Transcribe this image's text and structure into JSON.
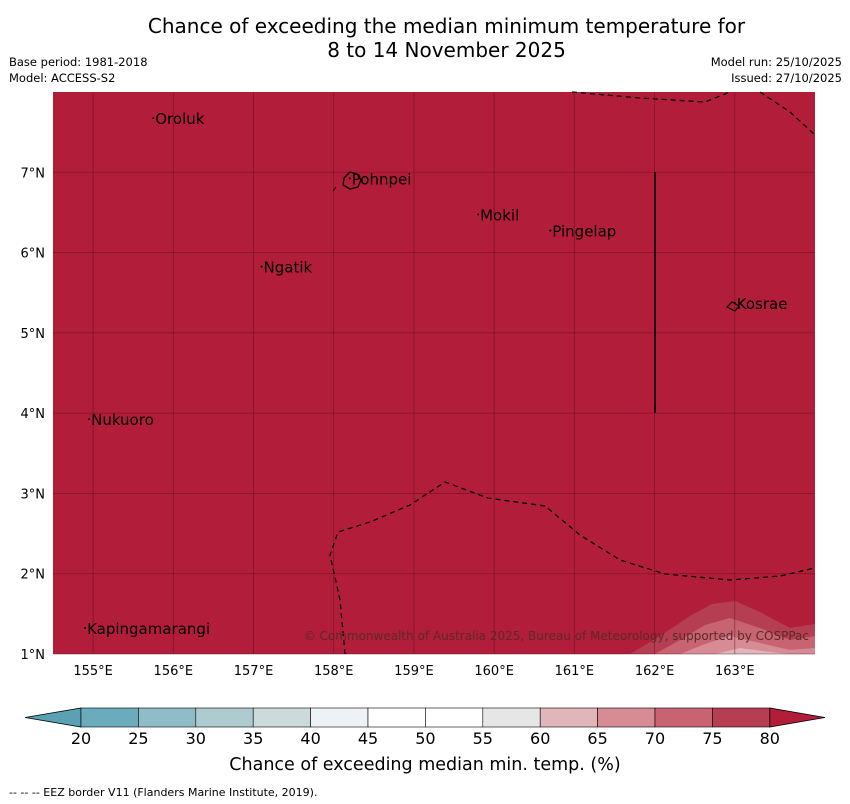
{
  "title": {
    "line1": "Chance of exceeding the median minimum temperature for",
    "line2": "8 to 14 November 2025"
  },
  "meta": {
    "base_period": "Base period: 1981-2018",
    "model": "Model: ACCESS-S2",
    "model_run": "Model run: 25/10/2025",
    "issued": "Issued: 27/10/2025"
  },
  "map": {
    "lon_range": [
      154.5,
      164
    ],
    "lat_range": [
      1,
      8
    ],
    "x_ticks": [
      "155°E",
      "156°E",
      "157°E",
      "158°E",
      "159°E",
      "160°E",
      "161°E",
      "162°E",
      "163°E"
    ],
    "y_ticks": [
      "7°N",
      "6°N",
      "5°N",
      "4°N",
      "3°N",
      "2°N",
      "1°N"
    ],
    "fill_color": "#b21d39",
    "places": [
      {
        "name": "Oroluk",
        "lon": 155.75,
        "lat": 7.6
      },
      {
        "name": "Pohnpei",
        "lon": 158.2,
        "lat": 6.85
      },
      {
        "name": "Mokil",
        "lon": 159.8,
        "lat": 6.4
      },
      {
        "name": "Pingelap",
        "lon": 160.7,
        "lat": 6.2
      },
      {
        "name": "Ngatik",
        "lon": 157.1,
        "lat": 5.75
      },
      {
        "name": "Kosrae",
        "lon": 163.0,
        "lat": 5.3
      },
      {
        "name": "Nukuoro",
        "lon": 154.95,
        "lat": 3.85
      },
      {
        "name": "Kapingamarangi",
        "lon": 154.9,
        "lat": 1.25
      }
    ],
    "copyright": "© Commonwealth of Australia 2025, Bureau of Meteorology, supported by COSPPac"
  },
  "colorbar": {
    "label": "Chance of exceeding median min. temp. (%)",
    "ticks": [
      "20",
      "25",
      "30",
      "35",
      "40",
      "45",
      "50",
      "55",
      "60",
      "65",
      "70",
      "75",
      "80"
    ],
    "colors": [
      "#6aacbc",
      "#8fbcc8",
      "#aecbcf",
      "#ccdadc",
      "#eef2f4",
      "#ffffff",
      "#ffffff",
      "#e6e6e6",
      "#e0b6bb",
      "#d68b95",
      "#c86472",
      "#b63e53"
    ],
    "under_color": "#5aa2b3",
    "over_color": "#b21d39"
  },
  "footnote": "--  --  -- EEZ border V11 (Flanders Marine Institute, 2019)."
}
